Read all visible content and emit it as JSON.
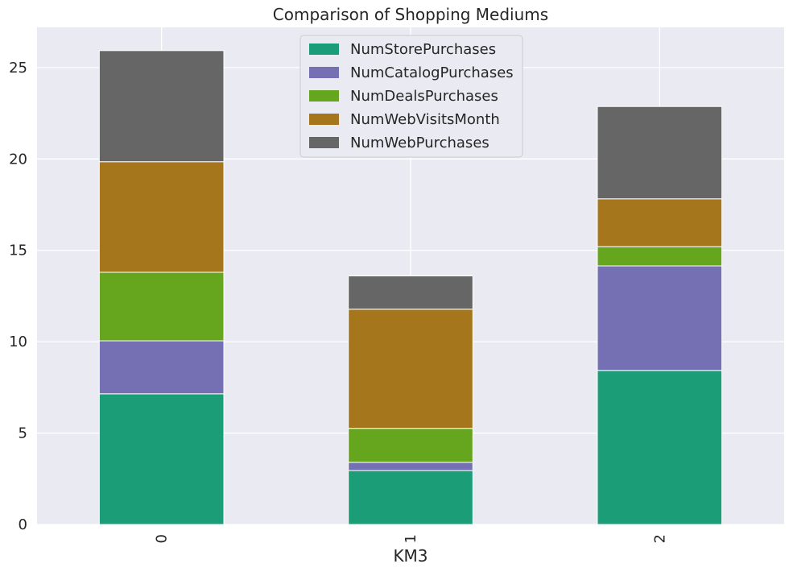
{
  "chart_data": {
    "type": "bar",
    "stacked": true,
    "title": "Comparison of Shopping Mediums",
    "xlabel": "KM3",
    "ylabel": "",
    "categories": [
      "0",
      "1",
      "2"
    ],
    "series": [
      {
        "name": "NumStorePurchases",
        "color": "#1b9e77",
        "values": [
          7.15,
          2.95,
          8.43
        ]
      },
      {
        "name": "NumCatalogPurchases",
        "color": "#7570b3",
        "values": [
          2.9,
          0.45,
          5.72
        ]
      },
      {
        "name": "NumDealsPurchases",
        "color": "#66a61e",
        "values": [
          3.75,
          1.86,
          1.05
        ]
      },
      {
        "name": "NumWebVisitsMonth",
        "color": "#a6761d",
        "values": [
          6.05,
          6.52,
          2.62
        ]
      },
      {
        "name": "NumWebPurchases",
        "color": "#666666",
        "values": [
          6.08,
          1.82,
          5.05
        ]
      }
    ],
    "ylim": [
      0,
      27.2
    ],
    "yticks": [
      "0",
      "5",
      "10",
      "15",
      "20",
      "25"
    ],
    "grid": true,
    "legend_position": "top-center",
    "background_color": "#eaeaf2"
  }
}
